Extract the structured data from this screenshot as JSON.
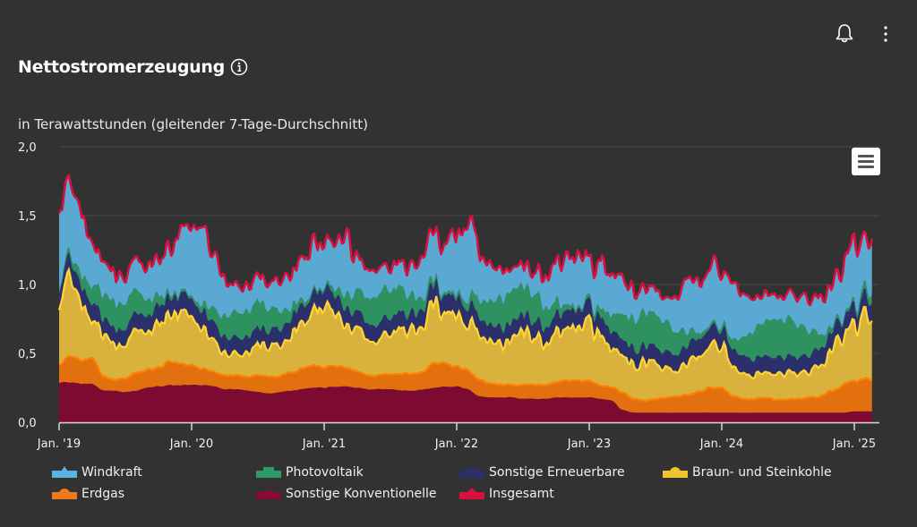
{
  "header": {
    "title": "Nettostromerzeugung",
    "subtitle": "in Terawattstunden (gleitender 7-Tage-Durchschnitt)",
    "icons": [
      "bell-icon",
      "more-vertical-icon",
      "info-icon",
      "hamburger-menu-icon"
    ]
  },
  "chart_data": {
    "type": "area",
    "stacked": true,
    "title": "Nettostromerzeugung",
    "ylabel": "in Terawattstunden (gleitender 7-Tage-Durchschnitt)",
    "xlabel": "",
    "ylim": [
      0,
      2
    ],
    "y_ticks": [
      "0,0",
      "0,5",
      "1,0",
      "1,5",
      "2,0"
    ],
    "y_tick_values": [
      0,
      0.5,
      1.0,
      1.5,
      2.0
    ],
    "x_ticks": [
      "Jan. '19",
      "Jan. '20",
      "Jan. '21",
      "Jan. '22",
      "Jan. '23",
      "Jan. '24",
      "Jan. '25"
    ],
    "x_tick_values": [
      0,
      12,
      24,
      36,
      48,
      60,
      72
    ],
    "x_unit": "months since Jan 2019",
    "grid": true,
    "legend_position": "bottom",
    "x": [
      0,
      1,
      2,
      3,
      4,
      5,
      6,
      7,
      8,
      9,
      10,
      11,
      12,
      13,
      14,
      15,
      16,
      17,
      18,
      19,
      20,
      21,
      22,
      23,
      24,
      25,
      26,
      27,
      28,
      29,
      30,
      31,
      32,
      33,
      34,
      35,
      36,
      37,
      38,
      39,
      40,
      41,
      42,
      43,
      44,
      45,
      46,
      47,
      48,
      49,
      50,
      51,
      52,
      53,
      54,
      55,
      56,
      57,
      58,
      59,
      60,
      61,
      62,
      63,
      64,
      65,
      66,
      67,
      68,
      69,
      70,
      71,
      72,
      73
    ],
    "series": [
      {
        "name": "Sonstige Konventionelle",
        "color": "#7d0a30",
        "values": [
          0.29,
          0.29,
          0.28,
          0.28,
          0.23,
          0.23,
          0.22,
          0.23,
          0.25,
          0.26,
          0.27,
          0.27,
          0.27,
          0.27,
          0.26,
          0.24,
          0.24,
          0.23,
          0.22,
          0.21,
          0.22,
          0.23,
          0.24,
          0.25,
          0.25,
          0.26,
          0.26,
          0.25,
          0.24,
          0.24,
          0.24,
          0.23,
          0.23,
          0.24,
          0.25,
          0.26,
          0.26,
          0.24,
          0.19,
          0.18,
          0.18,
          0.18,
          0.17,
          0.17,
          0.17,
          0.18,
          0.18,
          0.18,
          0.18,
          0.17,
          0.16,
          0.09,
          0.07,
          0.07,
          0.07,
          0.07,
          0.07,
          0.07,
          0.07,
          0.07,
          0.07,
          0.07,
          0.07,
          0.07,
          0.07,
          0.07,
          0.07,
          0.07,
          0.07,
          0.07,
          0.07,
          0.07,
          0.08,
          0.08
        ]
      },
      {
        "name": "Erdgas",
        "color": "#e3700f",
        "values": [
          0.12,
          0.2,
          0.17,
          0.18,
          0.1,
          0.08,
          0.1,
          0.13,
          0.13,
          0.14,
          0.17,
          0.15,
          0.14,
          0.12,
          0.1,
          0.1,
          0.1,
          0.1,
          0.12,
          0.12,
          0.12,
          0.13,
          0.15,
          0.16,
          0.15,
          0.15,
          0.13,
          0.12,
          0.1,
          0.1,
          0.11,
          0.12,
          0.12,
          0.13,
          0.18,
          0.17,
          0.14,
          0.14,
          0.12,
          0.1,
          0.09,
          0.09,
          0.1,
          0.1,
          0.1,
          0.11,
          0.12,
          0.12,
          0.12,
          0.1,
          0.1,
          0.12,
          0.1,
          0.09,
          0.1,
          0.11,
          0.12,
          0.13,
          0.15,
          0.18,
          0.18,
          0.12,
          0.1,
          0.1,
          0.11,
          0.09,
          0.1,
          0.1,
          0.11,
          0.12,
          0.16,
          0.2,
          0.22,
          0.24
        ]
      },
      {
        "name": "Braun- und Steinkohle",
        "color": "#d9b23e",
        "values": [
          0.42,
          0.55,
          0.4,
          0.3,
          0.28,
          0.25,
          0.25,
          0.28,
          0.27,
          0.3,
          0.35,
          0.33,
          0.38,
          0.3,
          0.22,
          0.17,
          0.16,
          0.17,
          0.22,
          0.22,
          0.24,
          0.28,
          0.33,
          0.4,
          0.45,
          0.4,
          0.3,
          0.28,
          0.25,
          0.27,
          0.3,
          0.32,
          0.3,
          0.32,
          0.45,
          0.38,
          0.42,
          0.35,
          0.35,
          0.3,
          0.3,
          0.32,
          0.35,
          0.35,
          0.33,
          0.36,
          0.35,
          0.45,
          0.4,
          0.38,
          0.28,
          0.25,
          0.25,
          0.28,
          0.25,
          0.22,
          0.2,
          0.22,
          0.25,
          0.3,
          0.32,
          0.22,
          0.2,
          0.18,
          0.17,
          0.17,
          0.18,
          0.18,
          0.18,
          0.22,
          0.3,
          0.35,
          0.4,
          0.45
        ]
      },
      {
        "name": "Sonstige Erneuerbare",
        "color": "#2b2f6c",
        "values": [
          0.12,
          0.13,
          0.13,
          0.13,
          0.12,
          0.12,
          0.12,
          0.12,
          0.12,
          0.13,
          0.13,
          0.13,
          0.13,
          0.13,
          0.13,
          0.12,
          0.12,
          0.12,
          0.12,
          0.12,
          0.12,
          0.13,
          0.13,
          0.13,
          0.13,
          0.13,
          0.13,
          0.12,
          0.12,
          0.12,
          0.12,
          0.12,
          0.12,
          0.13,
          0.13,
          0.13,
          0.13,
          0.13,
          0.13,
          0.12,
          0.12,
          0.12,
          0.12,
          0.12,
          0.12,
          0.13,
          0.13,
          0.13,
          0.13,
          0.13,
          0.13,
          0.12,
          0.12,
          0.12,
          0.12,
          0.12,
          0.12,
          0.13,
          0.13,
          0.13,
          0.13,
          0.13,
          0.13,
          0.12,
          0.12,
          0.12,
          0.12,
          0.12,
          0.12,
          0.13,
          0.13,
          0.13,
          0.13,
          0.13
        ]
      },
      {
        "name": "Photovoltaik",
        "color": "#2e9160",
        "values": [
          0.02,
          0.04,
          0.08,
          0.13,
          0.17,
          0.19,
          0.19,
          0.16,
          0.12,
          0.07,
          0.03,
          0.02,
          0.02,
          0.05,
          0.1,
          0.15,
          0.18,
          0.19,
          0.19,
          0.17,
          0.13,
          0.08,
          0.04,
          0.02,
          0.02,
          0.05,
          0.1,
          0.15,
          0.19,
          0.21,
          0.2,
          0.18,
          0.13,
          0.08,
          0.04,
          0.02,
          0.03,
          0.06,
          0.12,
          0.17,
          0.21,
          0.23,
          0.22,
          0.2,
          0.15,
          0.09,
          0.04,
          0.02,
          0.03,
          0.06,
          0.12,
          0.18,
          0.22,
          0.25,
          0.24,
          0.21,
          0.16,
          0.09,
          0.04,
          0.02,
          0.03,
          0.07,
          0.14,
          0.21,
          0.25,
          0.27,
          0.27,
          0.23,
          0.17,
          0.1,
          0.04,
          0.02,
          0.03,
          0.06
        ]
      },
      {
        "name": "Windkraft",
        "color": "#5aa9d3",
        "values": [
          0.55,
          0.5,
          0.45,
          0.3,
          0.25,
          0.2,
          0.18,
          0.22,
          0.25,
          0.28,
          0.35,
          0.45,
          0.5,
          0.6,
          0.42,
          0.25,
          0.2,
          0.18,
          0.17,
          0.18,
          0.22,
          0.25,
          0.3,
          0.35,
          0.3,
          0.35,
          0.4,
          0.25,
          0.2,
          0.18,
          0.17,
          0.18,
          0.22,
          0.3,
          0.32,
          0.38,
          0.4,
          0.55,
          0.35,
          0.25,
          0.2,
          0.15,
          0.15,
          0.16,
          0.2,
          0.28,
          0.35,
          0.38,
          0.3,
          0.35,
          0.3,
          0.25,
          0.2,
          0.17,
          0.17,
          0.18,
          0.25,
          0.35,
          0.35,
          0.4,
          0.42,
          0.4,
          0.3,
          0.22,
          0.2,
          0.18,
          0.18,
          0.22,
          0.25,
          0.25,
          0.3,
          0.35,
          0.45,
          0.35
        ]
      },
      {
        "name": "Insgesamt",
        "color": "#d8103f",
        "type": "line",
        "note": "sum of all layers"
      }
    ]
  },
  "legend": {
    "items": [
      {
        "label": "Windkraft",
        "color": "#5ab4e0",
        "marker": "triangle"
      },
      {
        "label": "Photovoltaik",
        "color": "#2e9a66",
        "marker": "square"
      },
      {
        "label": "Sonstige Erneuerbare",
        "color": "#2b2f6c",
        "marker": "diamond"
      },
      {
        "label": "Braun- und Steinkohle",
        "color": "#f0c330",
        "marker": "circle"
      },
      {
        "label": "Erdgas",
        "color": "#ef7a1a",
        "marker": "circle"
      },
      {
        "label": "Sonstige Konventionelle",
        "color": "#8a0a33",
        "marker": "triangle"
      },
      {
        "label": "Insgesamt",
        "color": "#d8103f",
        "marker": "diamond"
      }
    ]
  }
}
